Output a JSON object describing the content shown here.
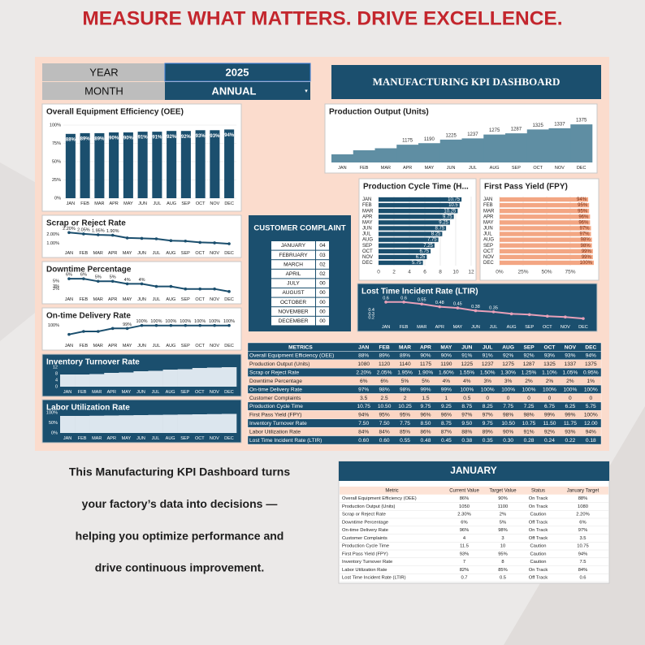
{
  "headline": "MEASURE WHAT MATTERS. DRIVE EXCELLENCE.",
  "selector": {
    "year_label": "YEAR",
    "year": "2025",
    "month_label": "MONTH",
    "month": "ANNUAL"
  },
  "dashboard_title": "MANUFACTURING KPI DASHBOARD",
  "charts": [
    {
      "type": "bar",
      "title": "Overall Equipment Efficiency (OEE)",
      "color": "#1b4f6e",
      "categories": [
        "JAN",
        "FEB",
        "MAR",
        "APR",
        "MAY",
        "JUN",
        "JUL",
        "AUG",
        "SEP",
        "OCT",
        "NOV",
        "DEC"
      ],
      "values": [
        88,
        89,
        89,
        90,
        90,
        91,
        91,
        92,
        92,
        93,
        93,
        94
      ],
      "value_labels": [
        "88%",
        "89%",
        "89%",
        "90%",
        "90%",
        "91%",
        "91%",
        "92%",
        "92%",
        "93%",
        "93%",
        "94%"
      ],
      "ylim": [
        0,
        100
      ],
      "yticks": [
        {
          "value": 0,
          "label": "0%"
        },
        {
          "value": 25,
          "label": "25%"
        },
        {
          "value": 50,
          "label": "50%"
        },
        {
          "value": 75,
          "label": "75%"
        },
        {
          "value": 100,
          "label": "100%"
        }
      ],
      "grid": true
    },
    {
      "type": "area",
      "title": "Production Output (Units)",
      "color": "#5f8ea3",
      "categories": [
        "JAN",
        "FEB",
        "MAR",
        "APR",
        "MAY",
        "JUN",
        "JUL",
        "AUG",
        "SEP",
        "OCT",
        "NOV",
        "DEC"
      ],
      "values": [
        1080,
        1120,
        1140,
        1175,
        1190,
        1225,
        1237,
        1275,
        1287,
        1325,
        1337,
        1375
      ],
      "value_labels": [
        null,
        null,
        null,
        "1175",
        "1190",
        "1225",
        "1237",
        "1275",
        "1287",
        "1325",
        "1337",
        "1375"
      ],
      "ylim": [
        1000,
        1400
      ],
      "yticks": [],
      "grid": false
    },
    {
      "type": "hbar",
      "title": "Production Cycle Time (H...",
      "color": "#1b4f6e",
      "categories": [
        "JAN",
        "FEB",
        "MAR",
        "APR",
        "MAY",
        "JUN",
        "JUL",
        "AUG",
        "SEP",
        "OCT",
        "NOV",
        "DEC"
      ],
      "values": [
        10.75,
        10.5,
        10.25,
        9.75,
        9.25,
        8.75,
        8.25,
        7.75,
        7.25,
        6.75,
        6.25,
        5.75
      ],
      "data_labels": true,
      "xlim": [
        0,
        12
      ],
      "xticks": [
        0,
        2,
        4,
        6,
        8,
        10,
        12
      ],
      "grid": true
    },
    {
      "type": "hbar",
      "title": "First Pass Yield (FPY)",
      "color": "#f3a683",
      "categories": [
        "JAN",
        "FEB",
        "MAR",
        "APR",
        "MAY",
        "JUN",
        "JUL",
        "AUG",
        "SEP",
        "OCT",
        "NOV",
        "DEC"
      ],
      "values": [
        94,
        95,
        95,
        96,
        96,
        97,
        97,
        98,
        98,
        99,
        99,
        100
      ],
      "value_labels": [
        "94%",
        "95%",
        "95%",
        "96%",
        "96%",
        "97%",
        "97%",
        "98%",
        "98%",
        "99%",
        "99%",
        "100%"
      ],
      "xlim": [
        0,
        100
      ],
      "xticks": [
        {
          "value": 0,
          "label": "0%"
        },
        {
          "value": 25,
          "label": "25%"
        },
        {
          "value": 50,
          "label": "50%"
        },
        {
          "value": 75,
          "label": "75%"
        }
      ],
      "grid": true
    },
    {
      "type": "line",
      "title": "Scrap or Reject Rate",
      "color": "#1b4f6e",
      "categories": [
        "JAN",
        "FEB",
        "MAR",
        "APR",
        "MAY",
        "JUN",
        "JUL",
        "AUG",
        "SEP",
        "OCT",
        "NOV",
        "DEC"
      ],
      "values": [
        2.2,
        2.05,
        1.95,
        1.9,
        1.6,
        1.55,
        1.5,
        1.3,
        1.25,
        1.1,
        1.05,
        0.95
      ],
      "value_labels": [
        "2.20%",
        "2.05%",
        "1.95%",
        "1.90%",
        null,
        null,
        null,
        null,
        null,
        null,
        null,
        null
      ],
      "ylim": [
        0.5,
        2.5
      ],
      "yticks": [
        {
          "value": 2,
          "label": "2.00%"
        },
        {
          "value": 1,
          "label": "1.00%"
        }
      ],
      "grid": false
    },
    {
      "type": "line",
      "title": "Downtime Percentage",
      "color": "#1b4f6e",
      "categories": [
        "JAN",
        "FEB",
        "MAR",
        "APR",
        "MAY",
        "JUN",
        "JUL",
        "AUG",
        "SEP",
        "OCT",
        "NOV",
        "DEC"
      ],
      "values": [
        6,
        6,
        5,
        5,
        4,
        4,
        3,
        3,
        2,
        2,
        2,
        1
      ],
      "value_labels": [
        "6%",
        "6%",
        "5%",
        "5%",
        "4%",
        "4%",
        null,
        null,
        null,
        null,
        null,
        null
      ],
      "ylim": [
        0,
        7
      ],
      "yticks": [
        {
          "value": 5,
          "label": "5%"
        },
        {
          "value": 3,
          "label": "3%"
        },
        {
          "value": 2,
          "label": "2%"
        }
      ],
      "grid": false
    },
    {
      "type": "line",
      "title": "On-time Delivery Rate",
      "color": "#1b4f6e",
      "categories": [
        "JAN",
        "FEB",
        "MAR",
        "APR",
        "MAY",
        "JUN",
        "JUL",
        "AUG",
        "SEP",
        "OCT",
        "NOV",
        "DEC"
      ],
      "values": [
        97,
        98,
        98,
        99,
        99,
        100,
        100,
        100,
        100,
        100,
        100,
        100
      ],
      "value_labels": [
        null,
        null,
        null,
        null,
        "99%",
        "100%",
        "100%",
        "100%",
        "100%",
        "100%",
        "100%",
        "100%"
      ],
      "ylim": [
        95,
        101
      ],
      "yticks": [
        {
          "value": 100,
          "label": "100%"
        }
      ],
      "grid": false
    },
    {
      "type": "line",
      "title": "Lost Time Incident Rate (LTIR)",
      "color": "#e8a0b8",
      "dark": true,
      "categories": [
        "JAN",
        "FEB",
        "MAR",
        "APR",
        "MAY",
        "JUN",
        "JUL",
        "AUG",
        "SEP",
        "OCT",
        "NOV",
        "DEC"
      ],
      "values": [
        0.6,
        0.6,
        0.55,
        0.48,
        0.45,
        0.38,
        0.35,
        0.3,
        0.28,
        0.24,
        0.22,
        0.18
      ],
      "value_labels": [
        "0.6",
        "0.6",
        "0.55",
        "0.48",
        "0.45",
        "0.38",
        "0.35",
        null,
        null,
        null,
        null,
        null
      ],
      "ylim": [
        0.1,
        0.7
      ],
      "yticks": [
        0.4,
        0.3,
        0.2
      ],
      "grid": false
    },
    {
      "type": "area",
      "title": "Inventory Turnover Rate",
      "color": "#dce6ee",
      "dark": true,
      "categories": [
        "JAN",
        "FEB",
        "MAR",
        "APR",
        "MAY",
        "JUN",
        "JUL",
        "AUG",
        "SEP",
        "OCT",
        "NOV",
        "DEC"
      ],
      "values": [
        7.5,
        7.5,
        7.75,
        8.5,
        8.75,
        9.5,
        9.75,
        10.5,
        10.75,
        11.5,
        11.75,
        12
      ],
      "ylim": [
        0,
        12
      ],
      "yticks": [
        12,
        8,
        4,
        0
      ],
      "grid": false
    },
    {
      "type": "area",
      "title": "Labor Utilization Rate",
      "color": "#dce6ee",
      "dark": true,
      "categories": [
        "JAN",
        "FEB",
        "MAR",
        "APR",
        "MAY",
        "JUN",
        "JUL",
        "AUG",
        "SEP",
        "OCT",
        "NOV",
        "DEC"
      ],
      "values": [
        84,
        84,
        85,
        86,
        87,
        88,
        89,
        90,
        91,
        92,
        93,
        94
      ],
      "ylim": [
        0,
        100
      ],
      "yticks": [
        {
          "value": 100,
          "label": "100%"
        },
        {
          "value": 50,
          "label": "50%"
        },
        {
          "value": 0,
          "label": "0%"
        }
      ],
      "grid": false
    }
  ],
  "complaints": {
    "title": "CUSTOMER COMPLAINT",
    "rows": [
      [
        "JANUARY",
        "04"
      ],
      [
        "FEBRUARY",
        "03"
      ],
      [
        "MARCH",
        "02"
      ],
      [
        "APRIL",
        "02"
      ],
      [
        "JULY",
        "00"
      ],
      [
        "AUGUST",
        "00"
      ],
      [
        "OCTOBER",
        "00"
      ],
      [
        "NOVEMBER",
        "00"
      ],
      [
        "DECEMBER",
        "00"
      ]
    ]
  },
  "metrics_table": {
    "header": [
      "METRICS",
      "JAN",
      "FEB",
      "MAR",
      "APR",
      "MAY",
      "JUN",
      "JUL",
      "AUG",
      "SEP",
      "OCT",
      "NOV",
      "DEC"
    ],
    "rows": [
      [
        "Overall Equipment Efficiency (OEE)",
        "88%",
        "89%",
        "89%",
        "90%",
        "90%",
        "91%",
        "91%",
        "92%",
        "92%",
        "93%",
        "93%",
        "94%"
      ],
      [
        "Production Output (Units)",
        "1080",
        "1120",
        "1140",
        "1175",
        "1190",
        "1225",
        "1237",
        "1275",
        "1287",
        "1325",
        "1337",
        "1375"
      ],
      [
        "Scrap or Reject Rate",
        "2.20%",
        "2.05%",
        "1.95%",
        "1.90%",
        "1.60%",
        "1.55%",
        "1.50%",
        "1.30%",
        "1.25%",
        "1.10%",
        "1.05%",
        "0.95%"
      ],
      [
        "Downtime Percentage",
        "6%",
        "6%",
        "5%",
        "5%",
        "4%",
        "4%",
        "3%",
        "3%",
        "2%",
        "2%",
        "2%",
        "1%"
      ],
      [
        "On-time Delivery Rate",
        "97%",
        "98%",
        "98%",
        "99%",
        "99%",
        "100%",
        "100%",
        "100%",
        "100%",
        "100%",
        "100%",
        "100%"
      ],
      [
        "Customer Complaints",
        "3.5",
        "2.5",
        "2",
        "1.5",
        "1",
        "0.5",
        "0",
        "0",
        "0",
        "0",
        "0",
        "0"
      ],
      [
        "Production Cycle Time",
        "10.75",
        "10.50",
        "10.25",
        "9.75",
        "9.25",
        "8.75",
        "8.25",
        "7.75",
        "7.25",
        "6.75",
        "6.25",
        "5.75"
      ],
      [
        "First Pass Yield (FPY)",
        "94%",
        "95%",
        "95%",
        "96%",
        "96%",
        "97%",
        "97%",
        "98%",
        "98%",
        "99%",
        "99%",
        "100%"
      ],
      [
        "Inventory Turnover Rate",
        "7.50",
        "7.50",
        "7.75",
        "8.50",
        "8.75",
        "9.50",
        "9.75",
        "10.50",
        "10.75",
        "11.50",
        "11.75",
        "12.00"
      ],
      [
        "Labor Utilization Rate",
        "84%",
        "84%",
        "85%",
        "86%",
        "87%",
        "88%",
        "89%",
        "90%",
        "91%",
        "92%",
        "93%",
        "94%"
      ],
      [
        "Lost Time Incident Rate (LTIR)",
        "0.60",
        "0.60",
        "0.55",
        "0.48",
        "0.45",
        "0.38",
        "0.35",
        "0.30",
        "0.28",
        "0.24",
        "0.22",
        "0.18"
      ]
    ]
  },
  "description": [
    "This Manufacturing KPI Dashboard turns",
    "your factory’s data into decisions —",
    "helping you optimize performance and",
    "drive continuous improvement."
  ],
  "january": {
    "title": "JANUARY",
    "header": [
      "Metric",
      "Current Value",
      "Target Value",
      "Status",
      "January Target"
    ],
    "rows": [
      [
        "Overall Equipment Efficiency (OEE)",
        "86%",
        "90%",
        "On Track",
        "88%"
      ],
      [
        "Production Output (Units)",
        "1050",
        "1100",
        "On Track",
        "1080"
      ],
      [
        "Scrap or Reject Rate",
        "2.30%",
        "2%",
        "Caution",
        "2.20%"
      ],
      [
        "Downtime Percentage",
        "6%",
        "5%",
        "Off Track",
        "6%"
      ],
      [
        "On-time Delivery Rate",
        "96%",
        "98%",
        "On Track",
        "97%"
      ],
      [
        "Customer Complaints",
        "4",
        "3",
        "Off Track",
        "3.5"
      ],
      [
        "Production Cycle Time",
        "11.5",
        "10",
        "Caution",
        "10.75"
      ],
      [
        "First Pass Yield (FPY)",
        "93%",
        "95%",
        "Caution",
        "94%"
      ],
      [
        "Inventory Turnover Rate",
        "7",
        "8",
        "Caution",
        "7.5"
      ],
      [
        "Labor Utilization Rate",
        "82%",
        "85%",
        "On Track",
        "84%"
      ],
      [
        "Lost Time Incident Rate (LTIR)",
        "0.7",
        "0.5",
        "Off Track",
        "0.6"
      ]
    ]
  }
}
